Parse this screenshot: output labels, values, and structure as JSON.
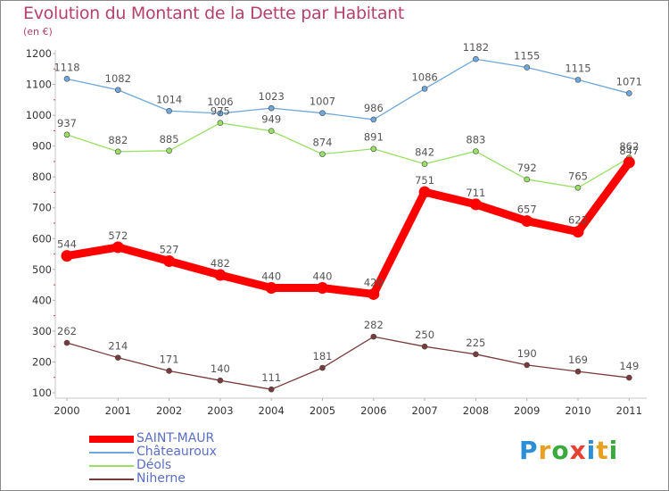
{
  "title": "Evolution du Montant de la Dette par Habitant",
  "subtitle": "(en €)",
  "logo": {
    "text": "Proxiti",
    "colors": [
      "#2b8fd6",
      "#e8a020",
      "#3aaa3a",
      "#e84030",
      "#2b8fd6",
      "#e8a020",
      "#3aaa3a"
    ]
  },
  "chart_data": {
    "type": "line",
    "title": "Evolution du Montant de la Dette par Habitant",
    "subtitle": "(en €)",
    "x": [
      "2000",
      "2001",
      "2002",
      "2003",
      "2004",
      "2005",
      "2006",
      "2007",
      "2008",
      "2009",
      "2010",
      "2011"
    ],
    "ylim": [
      100,
      1200
    ],
    "yticks": [
      "100",
      "200",
      "300",
      "400",
      "500",
      "600",
      "700",
      "800",
      "900",
      "1000",
      "1100",
      "1200"
    ],
    "grid": false,
    "legend_position": "bottom-left",
    "series": [
      {
        "name": "SAINT-MAUR",
        "color": "#ff0000",
        "values": [
          544,
          572,
          527,
          482,
          440,
          440,
          420,
          751,
          711,
          657,
          622,
          847
        ],
        "labels": [
          "544",
          "572",
          "527",
          "482",
          "440",
          "440",
          "420",
          "751",
          "711",
          "657",
          "622",
          "847"
        ]
      },
      {
        "name": "Châteauroux",
        "color": "#6fa8dc",
        "values": [
          1118,
          1082,
          1014,
          1006,
          1023,
          1007,
          986,
          1086,
          1182,
          1155,
          1115,
          1071
        ],
        "labels": [
          "1118",
          "1082",
          "1014",
          "1006",
          "1023",
          "1007",
          "986",
          "1086",
          "1182",
          "1155",
          "1115",
          "1071"
        ]
      },
      {
        "name": "Déols",
        "color": "#99e066",
        "values": [
          937,
          882,
          885,
          975,
          949,
          874,
          891,
          842,
          883,
          792,
          765,
          862
        ],
        "labels": [
          "937",
          "882",
          "885",
          "975",
          "949",
          "874",
          "891",
          "842",
          "883",
          "792",
          "765",
          "862"
        ]
      },
      {
        "name": "Niherne",
        "color": "#7a3a3a",
        "values": [
          262,
          214,
          171,
          140,
          111,
          181,
          282,
          250,
          225,
          190,
          169,
          149
        ],
        "labels": [
          "262",
          "214",
          "171",
          "140",
          "111",
          "181",
          "282",
          "250",
          "225",
          "190",
          "169",
          "149"
        ]
      }
    ]
  }
}
